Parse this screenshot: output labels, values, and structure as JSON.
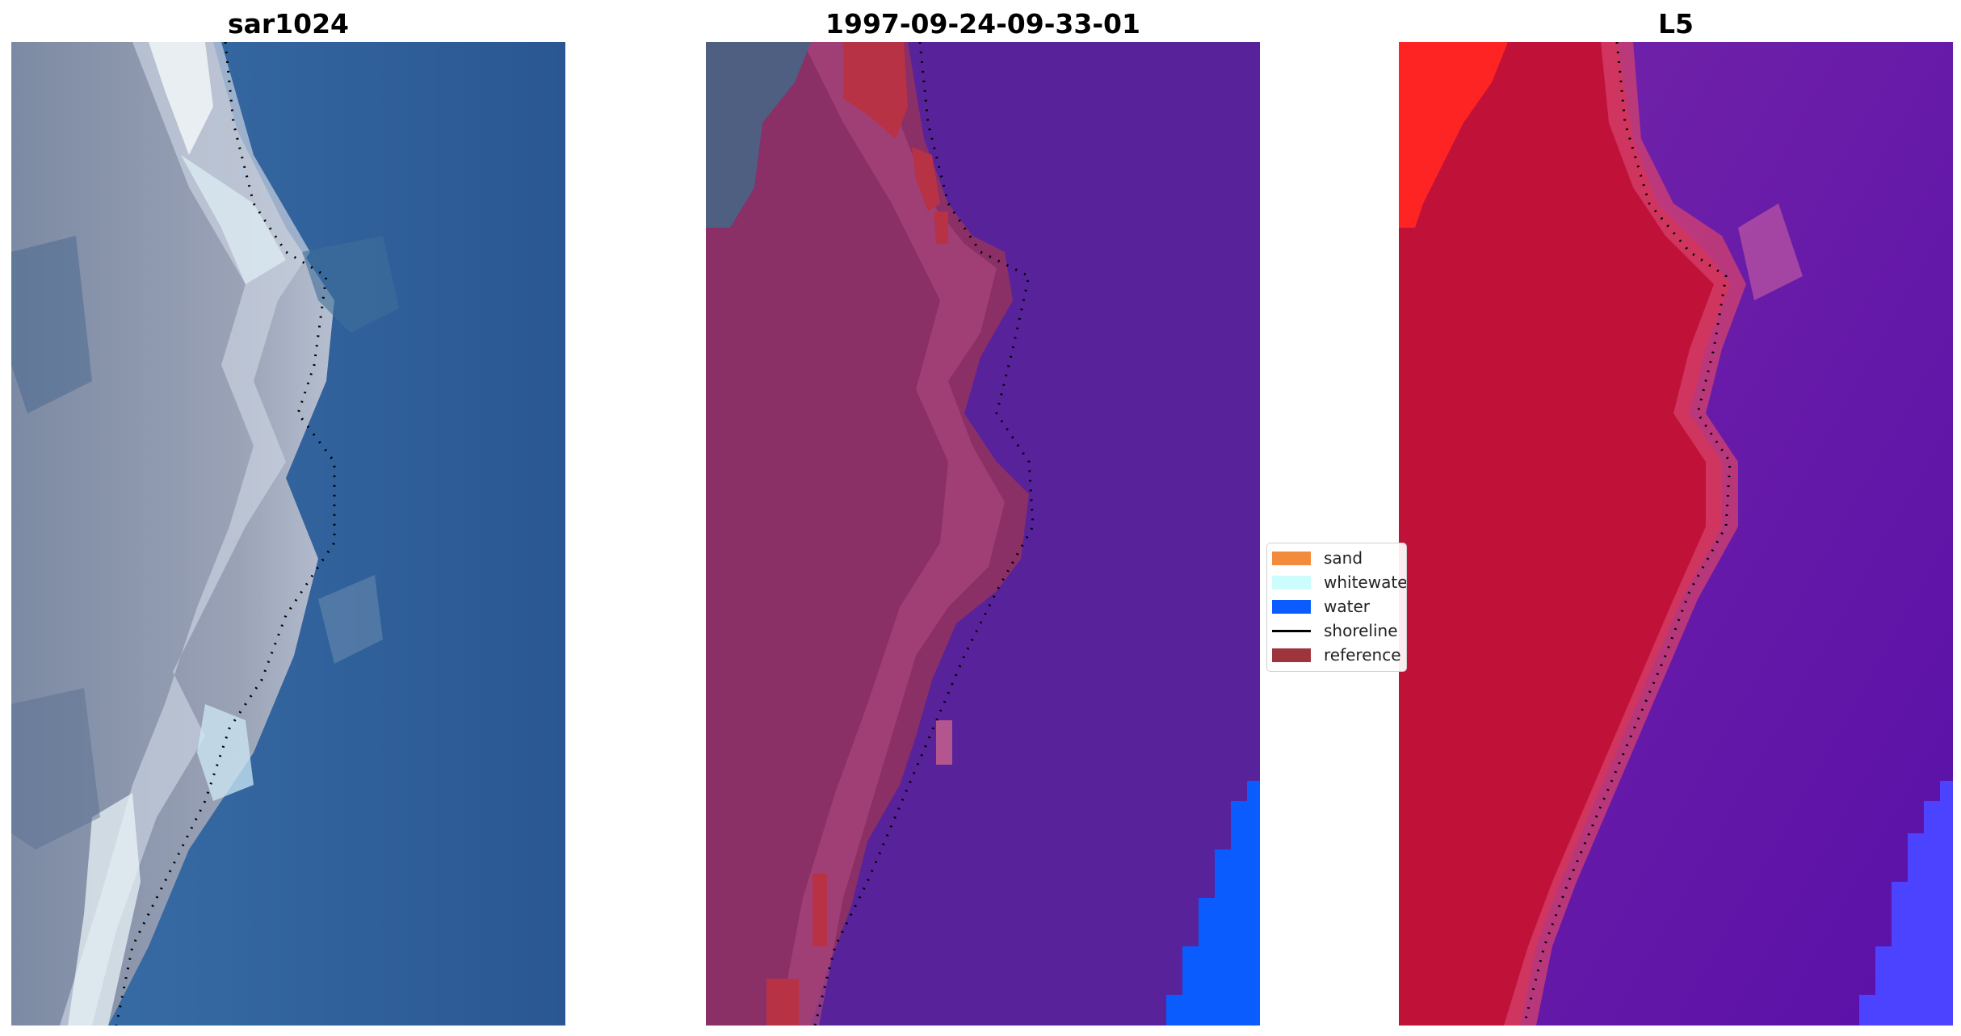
{
  "panels": [
    {
      "title": "sar1024"
    },
    {
      "title": "1997-09-24-09-33-01"
    },
    {
      "title": "L5"
    }
  ],
  "legend": {
    "items": [
      {
        "label": "sand",
        "color": "#f28b3c",
        "kind": "patch"
      },
      {
        "label": "whitewater",
        "color": "#cdfcfd",
        "kind": "patch"
      },
      {
        "label": "water",
        "color": "#0a5cff",
        "kind": "patch"
      },
      {
        "label": "shoreline",
        "color": "#000000",
        "kind": "line"
      },
      {
        "label": "reference",
        "color": "#9e343c",
        "kind": "patch"
      }
    ]
  },
  "colors": {
    "rgb_sand_gray": "#8a96ab",
    "rgb_whitewater": "#eaf6f8",
    "rgb_water": "#2d5f9a",
    "class_water": "#58239a",
    "class_sand_overlay": "#8b2f67",
    "class_reference": "#b83245",
    "class_deep_water": "#0a5cff",
    "prob_land": "#c01238",
    "prob_water": "#6415a6",
    "prob_deep_water": "#4b43ff",
    "prob_high_red": "#ff2424"
  }
}
